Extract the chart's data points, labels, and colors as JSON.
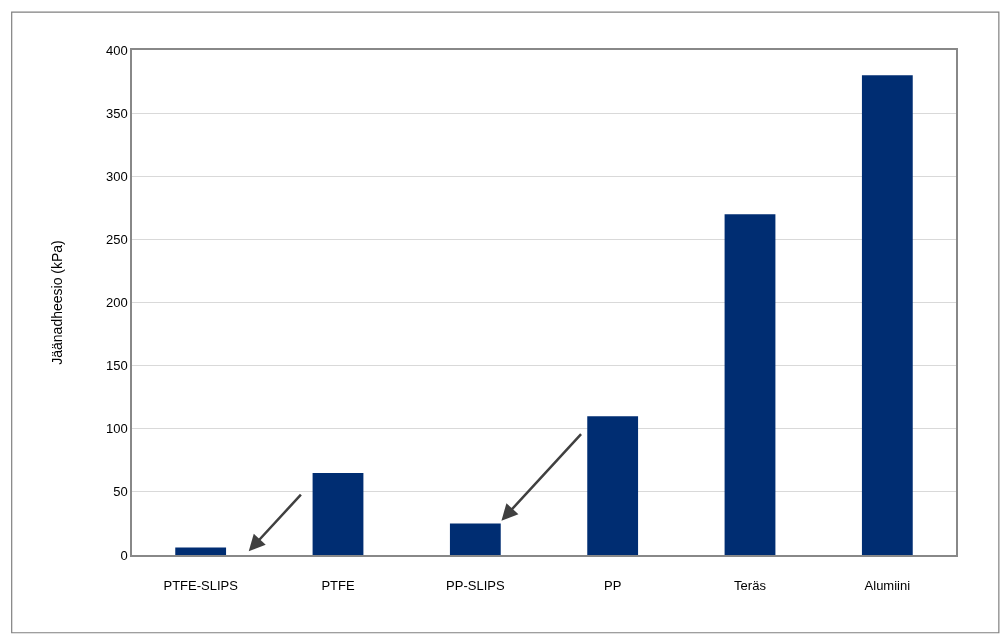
{
  "chart_data": {
    "type": "bar",
    "categories": [
      "PTFE-SLIPS",
      "PTFE",
      "PP-SLIPS",
      "PP",
      "Teräs",
      "Alumiini"
    ],
    "values": [
      6,
      65,
      25,
      110,
      270,
      380
    ],
    "color": "#002d72",
    "ylabel": "Jäänadheesio (kPa)",
    "ylim": [
      0,
      400
    ],
    "yticks": [
      0,
      50,
      100,
      150,
      200,
      250,
      300,
      350,
      400
    ],
    "grid": "y"
  }
}
